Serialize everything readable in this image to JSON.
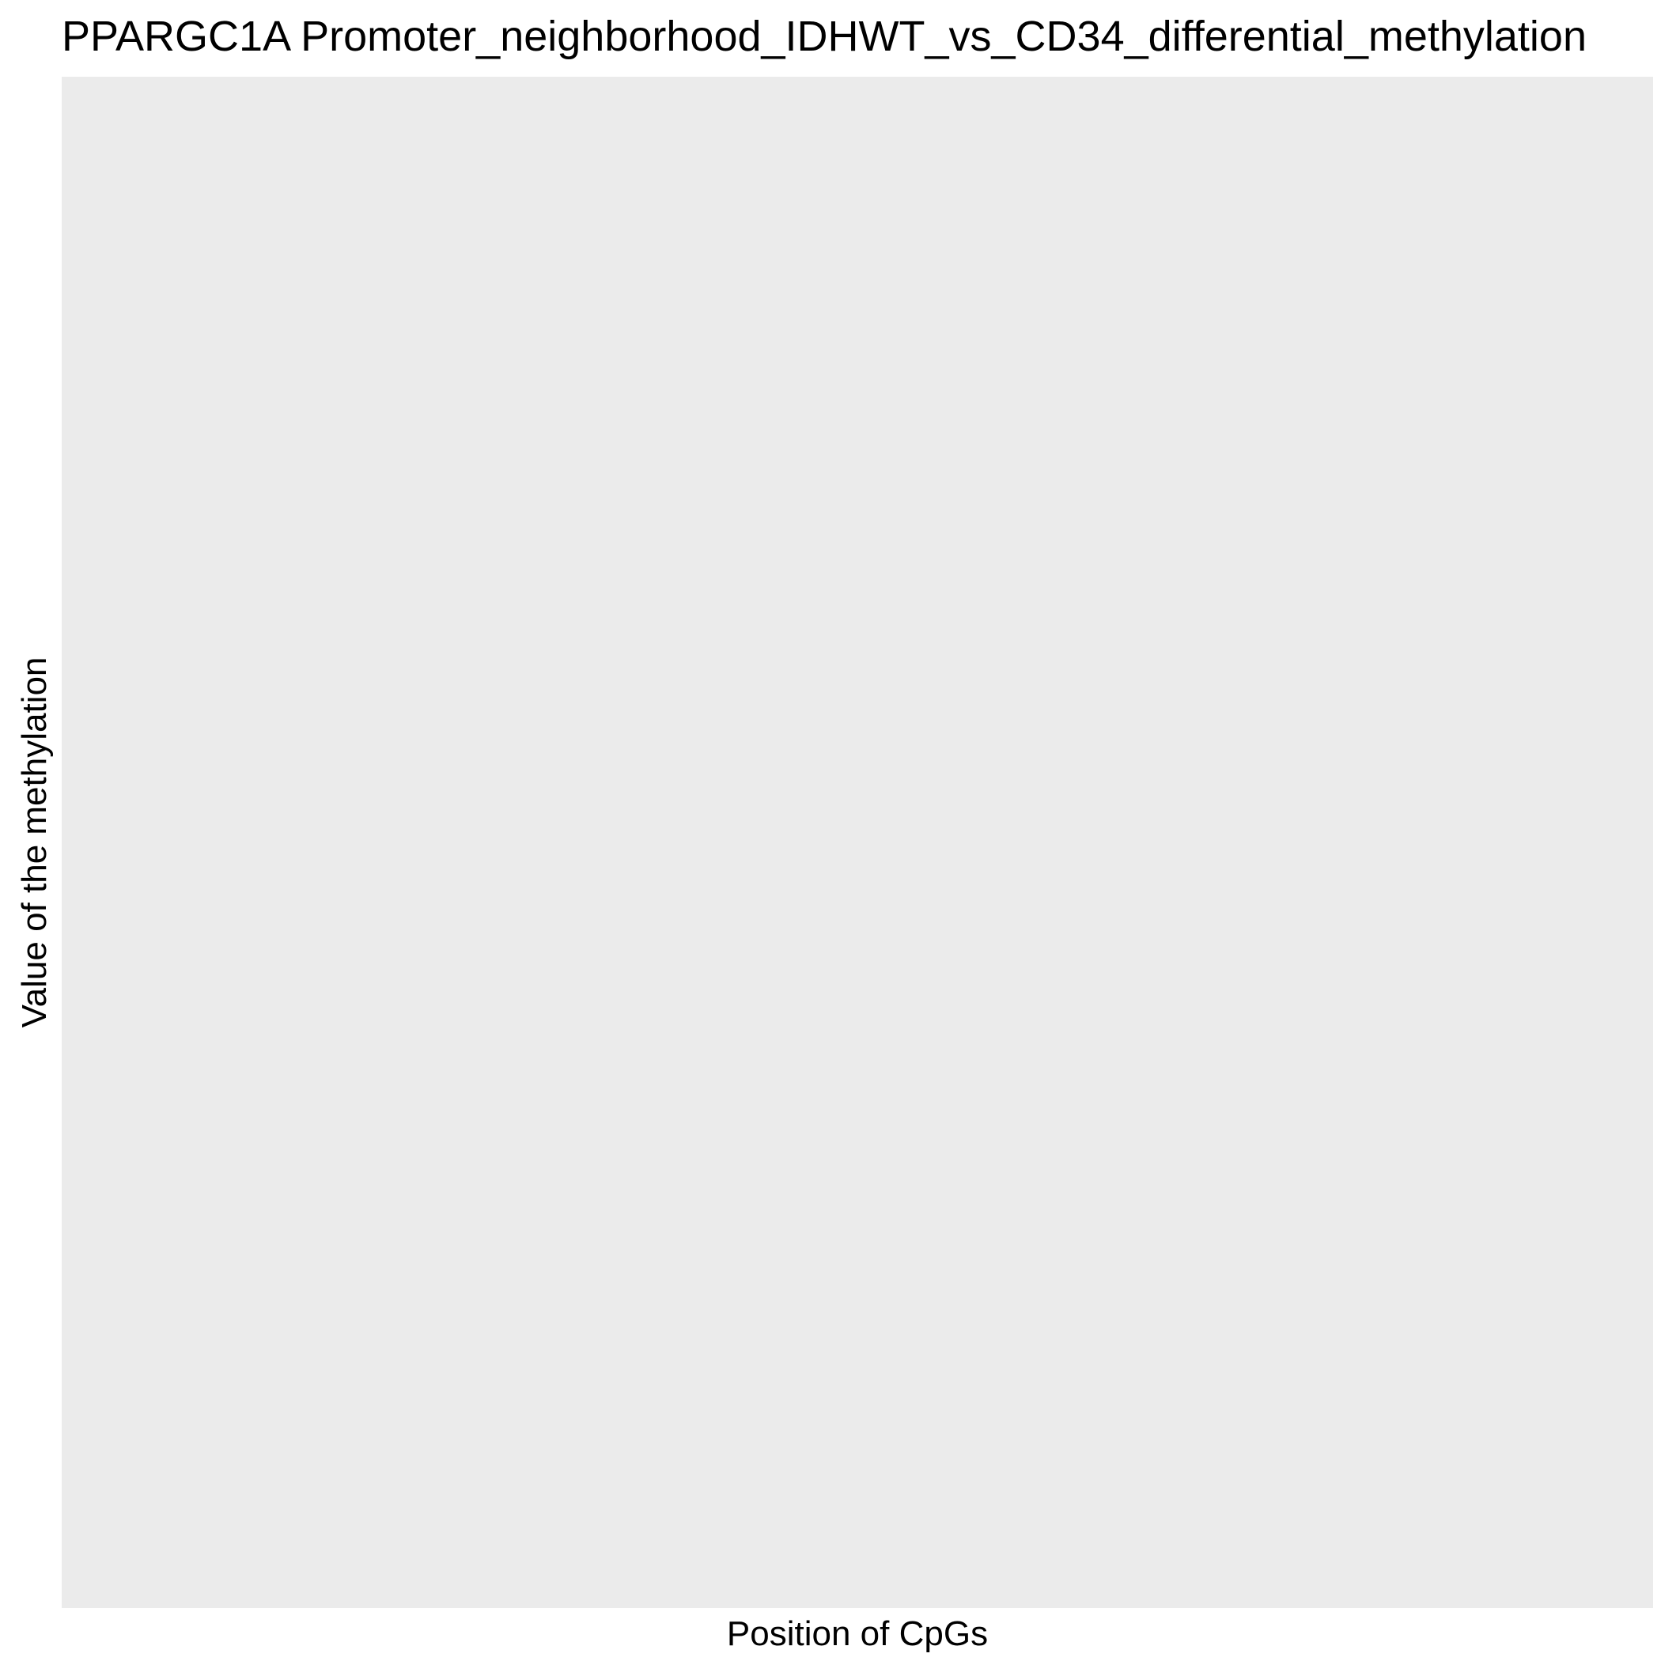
{
  "chart_data": {
    "type": "line",
    "title": "PPARGC1A Promoter_neighborhood_IDHWT_vs_CD34_differential_methylation",
    "xlabel": "Position of CpGs",
    "ylabel": "Value of the methylation",
    "series": [],
    "grid": false,
    "panel_background": "#ebebeb"
  }
}
